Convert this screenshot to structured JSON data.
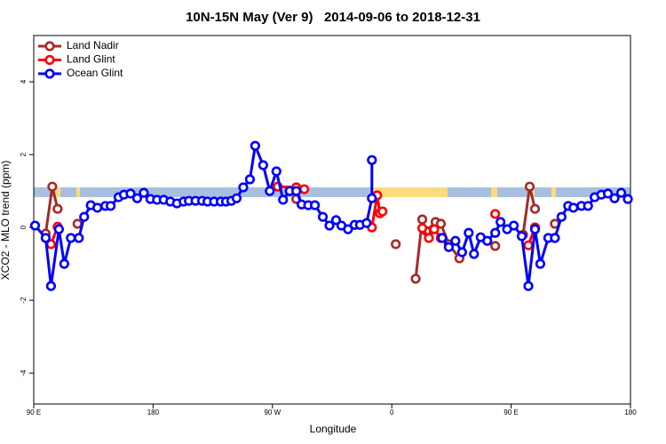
{
  "chart_data": {
    "type": "line",
    "title": "10N-15N May (Ver 9)   2014-09-06 to 2018-12-31",
    "xlabel": "Longitude",
    "ylabel": "XCO2 - MLO trend (ppm)",
    "xlim": [
      90,
      540
    ],
    "ylim": [
      -4.85,
      5.27
    ],
    "xticks": [
      {
        "value": 90,
        "label": "90 E"
      },
      180,
      {
        "value": 270,
        "label": "90 W"
      },
      {
        "value": 360,
        "label": "0"
      },
      {
        "value": 450,
        "label": "90 E"
      },
      {
        "value": 540,
        "label": "180"
      }
    ],
    "yticks": [
      -4,
      -2,
      0,
      2,
      4
    ],
    "legend": "upper left",
    "series": [
      {
        "name": "Land Nadir",
        "color": "#a52a2a",
        "x": [
          99,
          104,
          108,
          null,
          123,
          null,
          288,
          null,
          363,
          null,
          378,
          383,
          386,
          393,
          397,
          403,
          411,
          null,
          438,
          null,
          459,
          464,
          468,
          null,
          483
        ],
        "values": [
          -0.17,
          1.12,
          0.51,
          null,
          0.1,
          null,
          0.78,
          null,
          -0.46,
          null,
          -1.41,
          0.22,
          -0.1,
          0.15,
          0.1,
          -0.46,
          -0.85,
          null,
          -0.51,
          null,
          -0.2,
          1.12,
          0.51,
          null,
          0.1
        ]
      },
      {
        "name": "Land Glint",
        "color": "#ff0000",
        "x": [
          103,
          108,
          null,
          124,
          null,
          274,
          288,
          294,
          null,
          345,
          349,
          351,
          353,
          null,
          383,
          388,
          392,
          397,
          null,
          438,
          null,
          463,
          468,
          null,
          483
        ],
        "values": [
          -0.46,
          0.02,
          null,
          -0.29,
          null,
          1.12,
          1.1,
          1.05,
          null,
          0.0,
          0.88,
          0.39,
          0.44,
          null,
          -0.02,
          -0.29,
          -0.05,
          -0.29,
          null,
          0.37,
          null,
          -0.49,
          0.0,
          null,
          -0.29
        ]
      },
      {
        "name": "Ocean Glint",
        "color": "#0000ff",
        "x": [
          91,
          99,
          103,
          109,
          113,
          118,
          124,
          128,
          133,
          138,
          144,
          148,
          154,
          158,
          163,
          168,
          173,
          178,
          183,
          188,
          193,
          198,
          203,
          207,
          212,
          217,
          221,
          226,
          231,
          235,
          239,
          243,
          248,
          253,
          257,
          263,
          268,
          273,
          278,
          283,
          288,
          292,
          297,
          302,
          308,
          313,
          318,
          322,
          327,
          332,
          336,
          341,
          345,
          345,
          null,
          398,
          403,
          408,
          413,
          418,
          422,
          427,
          432,
          438,
          442,
          447,
          452,
          458,
          463,
          468,
          472,
          478,
          483,
          488,
          493,
          497,
          503,
          508,
          513,
          518,
          523,
          528,
          533,
          538
        ],
        "values": [
          0.05,
          -0.29,
          -1.61,
          -0.05,
          -1.0,
          -0.29,
          -0.29,
          0.29,
          0.61,
          0.54,
          0.59,
          0.59,
          0.83,
          0.9,
          0.93,
          0.8,
          0.95,
          0.78,
          0.76,
          0.76,
          0.71,
          0.66,
          0.71,
          0.73,
          0.73,
          0.73,
          0.71,
          0.71,
          0.71,
          0.71,
          0.73,
          0.8,
          1.1,
          1.32,
          2.24,
          1.71,
          1.0,
          1.54,
          0.76,
          1.0,
          1.0,
          0.63,
          0.61,
          0.61,
          0.29,
          0.05,
          0.2,
          0.05,
          -0.05,
          0.07,
          0.07,
          0.12,
          0.8,
          1.85,
          null,
          -0.29,
          -0.54,
          -0.37,
          -0.68,
          -0.15,
          -0.73,
          -0.27,
          -0.37,
          -0.15,
          0.15,
          -0.05,
          0.05,
          -0.24,
          -1.61,
          -0.05,
          -1.0,
          -0.29,
          -0.29,
          0.29,
          0.59,
          0.54,
          0.59,
          0.59,
          0.83,
          0.9,
          0.93,
          0.8,
          0.95,
          0.78
        ]
      }
    ]
  }
}
